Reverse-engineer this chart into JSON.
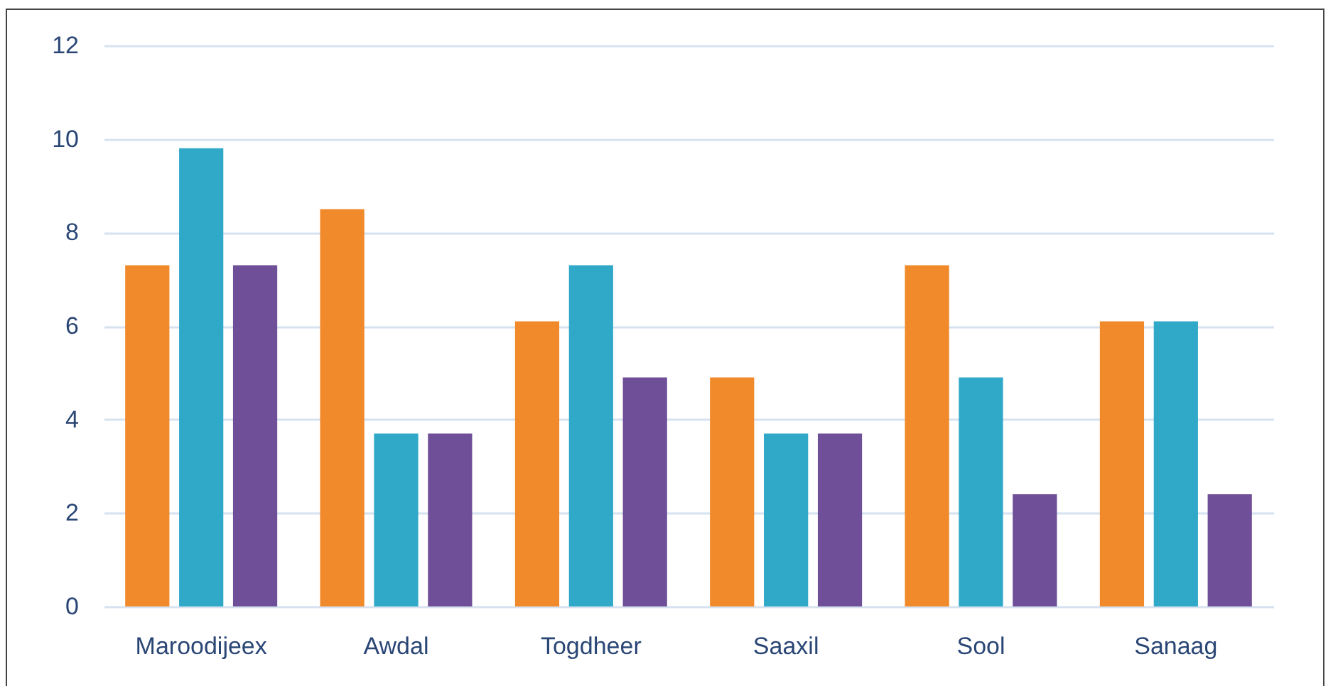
{
  "chart_data": {
    "type": "bar",
    "categories": [
      "Maroodijeex",
      "Awdal",
      "Togdheer",
      "Saaxil",
      "Sool",
      "Sanaag"
    ],
    "series": [
      {
        "color": "#f08a2a",
        "values": [
          7.3,
          8.5,
          6.1,
          4.9,
          7.3,
          6.1
        ]
      },
      {
        "color": "#30a8c8",
        "values": [
          9.8,
          3.7,
          7.3,
          3.7,
          4.9,
          6.1
        ]
      },
      {
        "color": "#6f4f98",
        "values": [
          7.3,
          3.7,
          4.9,
          3.7,
          2.4,
          2.4
        ]
      }
    ],
    "ylim": [
      0,
      12
    ],
    "yticks": [
      0,
      2,
      4,
      6,
      8,
      10,
      12
    ],
    "grid": "y"
  }
}
